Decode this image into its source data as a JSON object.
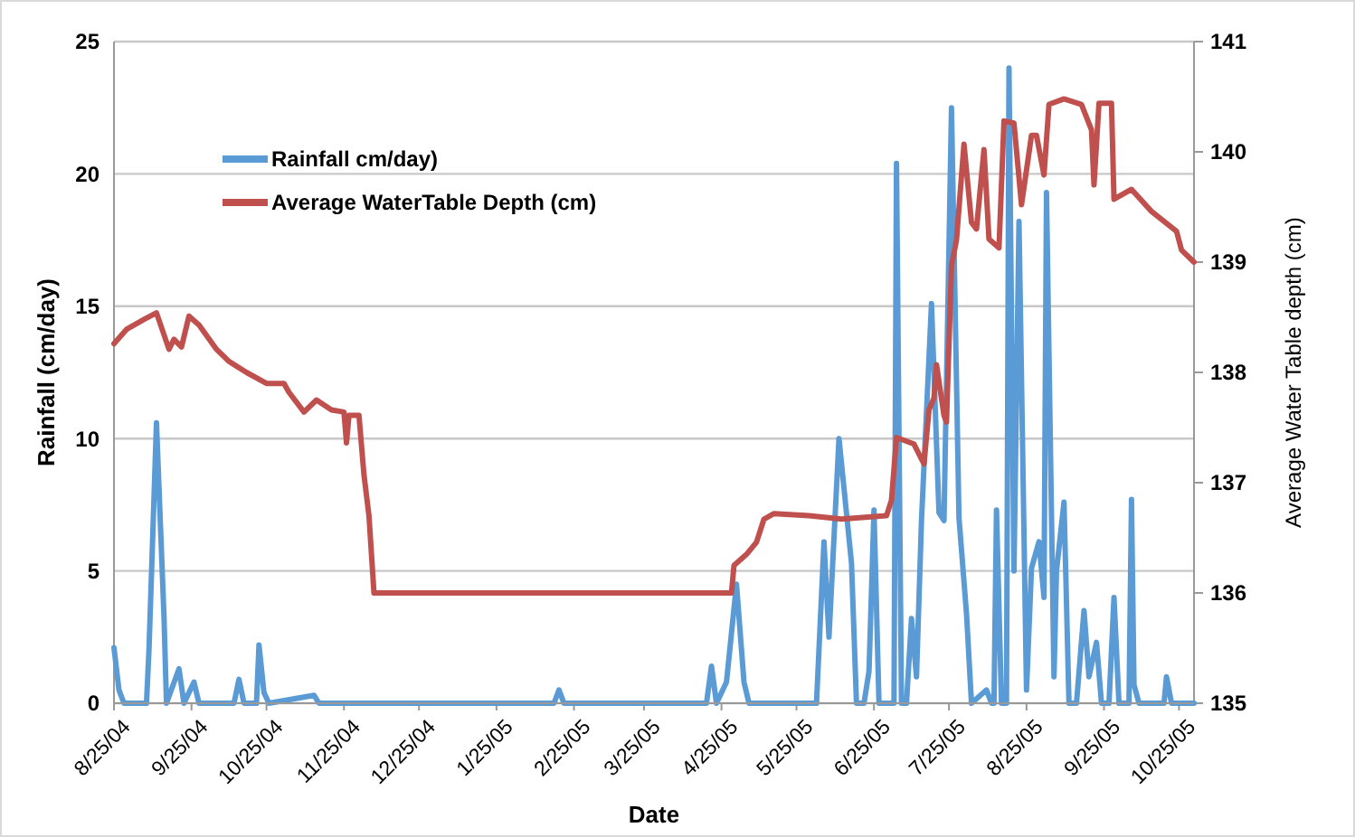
{
  "chart_data": {
    "type": "line",
    "xlabel": "Date",
    "ylabel": "Rainfall (cm/day)",
    "y2label": "Average Water Table depth (cm)",
    "xlim": [
      "2004-08-25",
      "2005-10-31"
    ],
    "xticks": [
      {
        "value": "2004-08-25",
        "label": "8/25/04"
      },
      {
        "value": "2004-09-25",
        "label": "9/25/04"
      },
      {
        "value": "2004-10-25",
        "label": "10/25/04"
      },
      {
        "value": "2004-11-25",
        "label": "11/25/04"
      },
      {
        "value": "2004-12-25",
        "label": "12/25/04"
      },
      {
        "value": "2005-01-25",
        "label": "1/25/05"
      },
      {
        "value": "2005-02-25",
        "label": "2/25/05"
      },
      {
        "value": "2005-03-25",
        "label": "3/25/05"
      },
      {
        "value": "2005-04-25",
        "label": "4/25/05"
      },
      {
        "value": "2005-05-25",
        "label": "5/25/05"
      },
      {
        "value": "2005-06-25",
        "label": "6/25/05"
      },
      {
        "value": "2005-07-25",
        "label": "7/25/05"
      },
      {
        "value": "2005-08-25",
        "label": "8/25/05"
      },
      {
        "value": "2005-09-25",
        "label": "9/25/05"
      },
      {
        "value": "2005-10-25",
        "label": "10/25/05"
      }
    ],
    "ylim": [
      0,
      25
    ],
    "yticks": [
      0,
      5,
      10,
      15,
      20,
      25
    ],
    "y2lim": [
      135,
      141
    ],
    "y2ticks": [
      135,
      136,
      137,
      138,
      139,
      140,
      141
    ],
    "grid": "y",
    "legend": "top left",
    "line_style": "solid",
    "marker": "none",
    "series": [
      {
        "name": "Rainfall cm/day)",
        "color": "#5b9bd5",
        "x": [
          "2004-08-25",
          "2004-08-27",
          "2004-08-29",
          "2004-09-07",
          "2004-09-08",
          "2004-09-11",
          "2004-09-14",
          "2004-09-15",
          "2004-09-20",
          "2004-09-22",
          "2004-09-26",
          "2004-09-28",
          "2004-10-12",
          "2004-10-14",
          "2004-10-16",
          "2004-10-21",
          "2004-10-22",
          "2004-10-24",
          "2004-10-26",
          "2004-11-13",
          "2004-11-15",
          "2005-02-17",
          "2005-02-19",
          "2005-02-21",
          "2005-04-19",
          "2005-04-21",
          "2005-04-23",
          "2005-04-27",
          "2005-05-01",
          "2005-05-04",
          "2005-05-06",
          "2005-06-02",
          "2005-06-05",
          "2005-06-07",
          "2005-06-11",
          "2005-06-16",
          "2005-06-18",
          "2005-06-21",
          "2005-06-23",
          "2005-06-25",
          "2005-06-27",
          "2005-07-03",
          "2005-07-04",
          "2005-07-06",
          "2005-07-08",
          "2005-07-10",
          "2005-07-12",
          "2005-07-14",
          "2005-07-18",
          "2005-07-21",
          "2005-07-23",
          "2005-07-26",
          "2005-07-29",
          "2005-08-01",
          "2005-08-03",
          "2005-08-09",
          "2005-08-11",
          "2005-08-12",
          "2005-08-13",
          "2005-08-15",
          "2005-08-17",
          "2005-08-18",
          "2005-08-20",
          "2005-08-22",
          "2005-08-25",
          "2005-08-27",
          "2005-08-30",
          "2005-09-01",
          "2005-09-02",
          "2005-09-05",
          "2005-09-06",
          "2005-09-09",
          "2005-09-11",
          "2005-09-14",
          "2005-09-17",
          "2005-09-19",
          "2005-09-22",
          "2005-09-24",
          "2005-09-27",
          "2005-09-29",
          "2005-10-01",
          "2005-10-05",
          "2005-10-06",
          "2005-10-07",
          "2005-10-09",
          "2005-10-19",
          "2005-10-20",
          "2005-10-22",
          "2005-10-31"
        ],
        "values": [
          2.1,
          0.5,
          0,
          0,
          2.0,
          10.6,
          3.3,
          0,
          1.3,
          0,
          0.8,
          0,
          0,
          0.9,
          0,
          0,
          2.2,
          0.4,
          0,
          0.3,
          0,
          0,
          0.5,
          0,
          0,
          1.4,
          0,
          0.8,
          4.5,
          0.8,
          0,
          0,
          6.1,
          2.5,
          10.0,
          5.3,
          0,
          0,
          1.2,
          7.3,
          0,
          0,
          20.4,
          0,
          0,
          3.2,
          1,
          6.9,
          15.1,
          7.2,
          6.9,
          22.5,
          7,
          3.4,
          0,
          0.5,
          0,
          0,
          7.3,
          0,
          0,
          24.0,
          5,
          18.2,
          0.5,
          5.1,
          6.1,
          4,
          19.3,
          1,
          5,
          7.6,
          0,
          0,
          3.5,
          1,
          2.3,
          0,
          0,
          4.0,
          0,
          0,
          7.7,
          0.7,
          0,
          0,
          1.0,
          0,
          0
        ]
      },
      {
        "name": "Average WaterTable Depth (cm)",
        "color": "#c0504d",
        "axis": "y2",
        "x": [
          "2004-08-25",
          "2004-08-30",
          "2004-09-06",
          "2004-09-11",
          "2004-09-16",
          "2004-09-18",
          "2004-09-21",
          "2004-09-24",
          "2004-09-28",
          "2004-10-05",
          "2004-10-10",
          "2004-10-17",
          "2004-10-25",
          "2004-11-01",
          "2004-11-03",
          "2004-11-09",
          "2004-11-14",
          "2004-11-20",
          "2004-11-25",
          "2004-11-26",
          "2004-11-27",
          "2004-12-01",
          "2004-12-03",
          "2004-12-05",
          "2004-12-07",
          "2005-04-29",
          "2005-04-30",
          "2005-05-05",
          "2005-05-09",
          "2005-05-12",
          "2005-05-16",
          "2005-05-30",
          "2005-06-12",
          "2005-06-30",
          "2005-07-02",
          "2005-07-04",
          "2005-07-11",
          "2005-07-15",
          "2005-07-17",
          "2005-07-19",
          "2005-07-20",
          "2005-07-23",
          "2005-07-24",
          "2005-07-26",
          "2005-07-28",
          "2005-07-31",
          "2005-08-03",
          "2005-08-05",
          "2005-08-08",
          "2005-08-10",
          "2005-08-14",
          "2005-08-16",
          "2005-08-20",
          "2005-08-23",
          "2005-08-27",
          "2005-08-29",
          "2005-09-01",
          "2005-09-03",
          "2005-09-09",
          "2005-09-16",
          "2005-09-20",
          "2005-09-21",
          "2005-09-23",
          "2005-09-28",
          "2005-09-29",
          "2005-10-06",
          "2005-10-14",
          "2005-10-24",
          "2005-10-26",
          "2005-10-31"
        ],
        "values": [
          138.26,
          138.39,
          138.48,
          138.54,
          138.21,
          138.3,
          138.23,
          138.51,
          138.43,
          138.21,
          138.1,
          138.0,
          137.9,
          137.9,
          137.82,
          137.64,
          137.75,
          137.66,
          137.64,
          137.36,
          137.61,
          137.61,
          137.07,
          136.7,
          136.0,
          136.0,
          136.25,
          136.35,
          136.46,
          136.67,
          136.72,
          136.7,
          136.67,
          136.7,
          136.84,
          137.41,
          137.35,
          137.17,
          137.66,
          137.77,
          138.07,
          137.61,
          137.55,
          138.97,
          139.2,
          140.07,
          139.36,
          139.3,
          140.02,
          139.21,
          139.13,
          140.28,
          140.26,
          139.52,
          140.15,
          140.15,
          139.79,
          140.43,
          140.48,
          140.43,
          140.2,
          139.7,
          140.44,
          140.44,
          139.57,
          139.66,
          139.46,
          139.28,
          139.11,
          139.0
        ]
      }
    ]
  }
}
